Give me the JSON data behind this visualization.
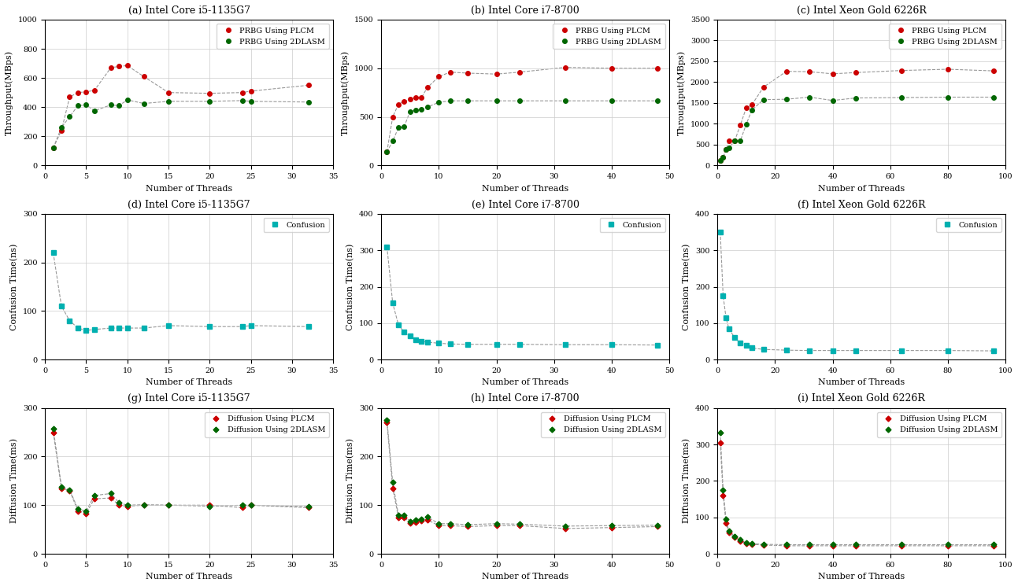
{
  "titles": [
    "(a) Intel Core i5-1135G7",
    "(b) Intel Core i7-8700",
    "(c) Intel Xeon Gold 6226R",
    "(d) Intel Core i5-1135G7",
    "(e) Intel Core i7-8700",
    "(f) Intel Xeon Gold 6226R",
    "(g) Intel Core i5-1135G7",
    "(h) Intel Core i7-8700",
    "(i) Intel Xeon Gold 6226R"
  ],
  "throughput_a_threads": [
    1,
    2,
    3,
    4,
    5,
    6,
    8,
    9,
    10,
    12,
    15,
    20,
    24,
    25,
    32
  ],
  "throughput_a_plcm": [
    120,
    240,
    470,
    500,
    505,
    515,
    670,
    680,
    685,
    610,
    500,
    495,
    500,
    510,
    550
  ],
  "throughput_a_2dlasm": [
    120,
    260,
    335,
    410,
    415,
    375,
    415,
    410,
    450,
    425,
    440,
    440,
    445,
    440,
    435
  ],
  "throughput_b_threads": [
    1,
    2,
    3,
    4,
    5,
    6,
    7,
    8,
    10,
    12,
    15,
    20,
    24,
    32,
    40,
    48
  ],
  "throughput_b_plcm": [
    140,
    500,
    630,
    660,
    680,
    700,
    700,
    800,
    915,
    960,
    950,
    940,
    960,
    1010,
    1000,
    1000
  ],
  "throughput_b_2dlasm": [
    140,
    250,
    390,
    400,
    555,
    570,
    575,
    600,
    650,
    665,
    665,
    665,
    665,
    665,
    665,
    665
  ],
  "throughput_c_threads": [
    1,
    2,
    3,
    4,
    6,
    8,
    10,
    12,
    16,
    24,
    32,
    40,
    48,
    64,
    80,
    96
  ],
  "throughput_c_plcm": [
    115,
    200,
    390,
    600,
    590,
    975,
    1380,
    1460,
    1880,
    2260,
    2250,
    2200,
    2230,
    2280,
    2310,
    2270
  ],
  "throughput_c_2dlasm": [
    115,
    200,
    390,
    420,
    590,
    595,
    990,
    1330,
    1580,
    1590,
    1640,
    1560,
    1620,
    1630,
    1640,
    1640
  ],
  "confusion_a_threads": [
    1,
    2,
    3,
    4,
    5,
    6,
    8,
    9,
    10,
    12,
    15,
    20,
    24,
    25,
    32
  ],
  "confusion_a_vals": [
    220,
    110,
    80,
    65,
    60,
    62,
    65,
    65,
    65,
    65,
    70,
    68,
    68,
    70,
    68
  ],
  "confusion_b_threads": [
    1,
    2,
    3,
    4,
    5,
    6,
    7,
    8,
    10,
    12,
    15,
    20,
    24,
    32,
    40,
    48
  ],
  "confusion_b_vals": [
    310,
    155,
    95,
    75,
    65,
    55,
    50,
    48,
    45,
    43,
    42,
    42,
    42,
    41,
    41,
    40
  ],
  "confusion_c_threads": [
    1,
    2,
    3,
    4,
    6,
    8,
    10,
    12,
    16,
    24,
    32,
    40,
    48,
    64,
    80,
    96
  ],
  "confusion_c_vals": [
    350,
    175,
    115,
    85,
    60,
    45,
    40,
    32,
    28,
    26,
    25,
    25,
    25,
    25,
    25,
    24
  ],
  "diffusion_a_threads": [
    1,
    2,
    3,
    4,
    5,
    6,
    8,
    9,
    10,
    12,
    15,
    20,
    24,
    25,
    32
  ],
  "diffusion_a_plcm": [
    250,
    135,
    130,
    88,
    83,
    113,
    115,
    100,
    98,
    100,
    100,
    100,
    95,
    100,
    95
  ],
  "diffusion_a_2dlasm": [
    258,
    138,
    132,
    92,
    88,
    120,
    124,
    105,
    100,
    101,
    100,
    98,
    100,
    100,
    97
  ],
  "diffusion_b_threads": [
    1,
    2,
    3,
    4,
    5,
    6,
    7,
    8,
    10,
    12,
    15,
    20,
    24,
    32,
    40,
    48
  ],
  "diffusion_b_plcm": [
    270,
    135,
    75,
    75,
    63,
    65,
    68,
    70,
    58,
    58,
    56,
    58,
    58,
    52,
    54,
    56
  ],
  "diffusion_b_2dlasm": [
    275,
    147,
    80,
    79,
    67,
    70,
    72,
    76,
    62,
    62,
    60,
    62,
    61,
    57,
    58,
    59
  ],
  "diffusion_c_threads": [
    1,
    2,
    3,
    4,
    6,
    8,
    10,
    12,
    16,
    24,
    32,
    40,
    48,
    64,
    80,
    96
  ],
  "diffusion_c_plcm": [
    305,
    160,
    85,
    58,
    45,
    35,
    28,
    26,
    24,
    22,
    22,
    22,
    22,
    22,
    22,
    22
  ],
  "diffusion_c_2dlasm": [
    332,
    175,
    95,
    62,
    48,
    38,
    30,
    28,
    26,
    25,
    25,
    25,
    25,
    25,
    25,
    25
  ],
  "color_red": "#cc0000",
  "color_green": "#006600",
  "color_cyan": "#00b0b0",
  "line_color": "#999999",
  "bg_color": "#ffffff"
}
